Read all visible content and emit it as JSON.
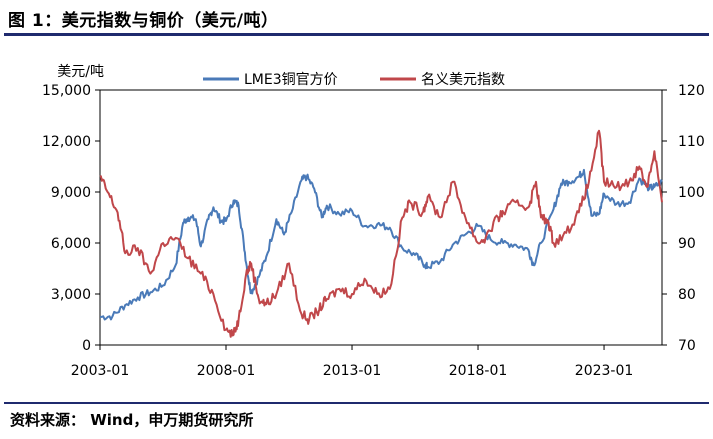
{
  "figure": {
    "title": "图 1：美元指数与铜价（美元/吨）",
    "source": "资料来源： Wind，申万期货研究所"
  },
  "chart_data": {
    "type": "line",
    "title": "美元指数与铜价（美元/吨）",
    "y_left_label": "美元/吨",
    "y_left_range": [
      0,
      15000
    ],
    "y_left_ticks": [
      "0",
      "3,000",
      "6,000",
      "9,000",
      "12,000",
      "15,000"
    ],
    "y_right_range": [
      70,
      120
    ],
    "y_right_ticks": [
      "70",
      "80",
      "90",
      "100",
      "110",
      "120"
    ],
    "x_range": [
      2003.0,
      2025.3
    ],
    "x_ticks": [
      {
        "value": 2003.0,
        "label": "2003-01"
      },
      {
        "value": 2008.0,
        "label": "2008-01"
      },
      {
        "value": 2013.0,
        "label": "2013-01"
      },
      {
        "value": 2018.0,
        "label": "2018-01"
      },
      {
        "value": 2023.0,
        "label": "2023-01"
      }
    ],
    "legend_position": "top-center",
    "series": [
      {
        "name": "LME3铜官方价",
        "axis": "left",
        "color": "#4a7ab8",
        "x": [
          2003.0,
          2003.5,
          2004.0,
          2004.5,
          2005.0,
          2005.5,
          2006.0,
          2006.3,
          2006.5,
          2006.8,
          2007.0,
          2007.3,
          2007.5,
          2007.8,
          2008.0,
          2008.3,
          2008.5,
          2008.7,
          2008.9,
          2009.0,
          2009.3,
          2009.6,
          2010.0,
          2010.3,
          2010.6,
          2011.0,
          2011.2,
          2011.5,
          2011.8,
          2012.0,
          2012.5,
          2013.0,
          2013.5,
          2014.0,
          2014.5,
          2015.0,
          2015.5,
          2015.9,
          2016.0,
          2016.5,
          2017.0,
          2017.5,
          2018.0,
          2018.5,
          2019.0,
          2019.5,
          2020.0,
          2020.2,
          2020.5,
          2021.0,
          2021.3,
          2021.6,
          2022.0,
          2022.2,
          2022.5,
          2022.8,
          2023.0,
          2023.5,
          2024.0,
          2024.4,
          2024.8,
          2025.0,
          2025.3
        ],
        "values": [
          1650,
          1700,
          2350,
          2800,
          3100,
          3500,
          4700,
          7200,
          7500,
          7400,
          5800,
          7400,
          8100,
          7300,
          7300,
          8500,
          8200,
          6000,
          3800,
          3100,
          4000,
          5200,
          7400,
          6500,
          7800,
          9700,
          9900,
          9200,
          7500,
          8200,
          7700,
          7900,
          7000,
          7100,
          6900,
          5700,
          5300,
          4700,
          4600,
          4900,
          5900,
          6500,
          7000,
          6200,
          6000,
          5900,
          5600,
          4700,
          6000,
          8000,
          9500,
          9600,
          9900,
          10300,
          7600,
          7700,
          8900,
          8300,
          8400,
          9800,
          9200,
          9300,
          9600
        ]
      },
      {
        "name": "名义美元指数",
        "axis": "right",
        "color": "#c0474a",
        "x": [
          2003.0,
          2003.3,
          2003.7,
          2004.0,
          2004.5,
          2005.0,
          2005.5,
          2006.0,
          2006.5,
          2007.0,
          2007.5,
          2008.0,
          2008.3,
          2008.5,
          2008.8,
          2009.0,
          2009.3,
          2009.6,
          2010.0,
          2010.5,
          2011.0,
          2011.3,
          2011.7,
          2012.0,
          2012.5,
          2013.0,
          2013.5,
          2014.0,
          2014.5,
          2015.0,
          2015.3,
          2015.8,
          2016.0,
          2016.5,
          2017.0,
          2017.5,
          2018.0,
          2018.3,
          2018.8,
          2019.0,
          2019.5,
          2020.0,
          2020.3,
          2020.5,
          2020.8,
          2021.0,
          2021.5,
          2022.0,
          2022.4,
          2022.8,
          2023.0,
          2023.5,
          2024.0,
          2024.4,
          2024.7,
          2025.0,
          2025.3
        ],
        "values": [
          103,
          100,
          96,
          88,
          89,
          84,
          90,
          91,
          87,
          84,
          80,
          73,
          72,
          75,
          84,
          86,
          79,
          78,
          80,
          86,
          76,
          75,
          77,
          79,
          81,
          80,
          83,
          80,
          81,
          95,
          98,
          96,
          99,
          95,
          102,
          95,
          90,
          91,
          95,
          96,
          98,
          97,
          102,
          95,
          94,
          90,
          92,
          96,
          102,
          112,
          102,
          101,
          102,
          105,
          101,
          108,
          98
        ]
      }
    ]
  }
}
